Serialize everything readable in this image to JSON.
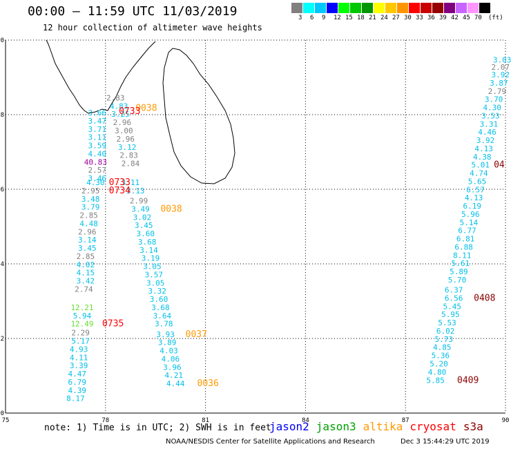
{
  "header": {
    "title": "00:00 – 11:59 UTC 11/03/2019",
    "subtitle": "12 hour collection of altimeter wave heights"
  },
  "scale": {
    "unit": "(ft)",
    "items": [
      {
        "label": "3",
        "color": "#808080"
      },
      {
        "label": "6",
        "color": "#00ffff"
      },
      {
        "label": "9",
        "color": "#00c8ff"
      },
      {
        "label": "12",
        "color": "#0000ff"
      },
      {
        "label": "15",
        "color": "#00ff00"
      },
      {
        "label": "18",
        "color": "#00c800"
      },
      {
        "label": "21",
        "color": "#009600"
      },
      {
        "label": "24",
        "color": "#ffff00"
      },
      {
        "label": "27",
        "color": "#ffc800"
      },
      {
        "label": "30",
        "color": "#ff9600"
      },
      {
        "label": "33",
        "color": "#ff0000"
      },
      {
        "label": "36",
        "color": "#c80000"
      },
      {
        "label": "39",
        "color": "#960000"
      },
      {
        "label": "42",
        "color": "#800080"
      },
      {
        "label": "45",
        "color": "#c864ff"
      },
      {
        "label": "70",
        "color": "#ff96ff"
      },
      {
        "label": "",
        "color": "#000000"
      }
    ]
  },
  "axes": {
    "x_ticks": [
      "75",
      "78",
      "81",
      "84",
      "87",
      "90"
    ],
    "y_ticks": [
      "0",
      "2",
      "4",
      "6",
      "8",
      "10"
    ],
    "xlim": [
      75,
      90
    ],
    "ylim": [
      0,
      10
    ]
  },
  "colors": {
    "gray": "#808080",
    "cyan": "#00bfe8",
    "red": "#ff0000",
    "orange": "#ff9900",
    "purple": "#a000a0",
    "green": "#66dd33",
    "darkred": "#8b0000"
  },
  "tracks": [
    {
      "name": "track-a",
      "labels": [
        {
          "lon": 77.75,
          "lat": 7.98,
          "v": "3.66",
          "c": "cyan"
        },
        {
          "lon": 77.75,
          "lat": 7.76,
          "v": "3.47",
          "c": "cyan"
        },
        {
          "lon": 77.75,
          "lat": 7.54,
          "v": "3.71",
          "c": "cyan"
        },
        {
          "lon": 77.75,
          "lat": 7.32,
          "v": "3.11",
          "c": "cyan"
        },
        {
          "lon": 77.75,
          "lat": 7.1,
          "v": "3.59",
          "c": "cyan"
        },
        {
          "lon": 77.75,
          "lat": 6.88,
          "v": "4.40",
          "c": "cyan"
        },
        {
          "lon": 77.7,
          "lat": 6.66,
          "v": "40.83",
          "c": "purple"
        },
        {
          "lon": 77.75,
          "lat": 6.44,
          "v": "2.57",
          "c": "gray"
        },
        {
          "lon": 77.75,
          "lat": 6.22,
          "v": "3.46",
          "c": "cyan"
        },
        {
          "lon": 77.7,
          "lat": 6.11,
          "v": "4.30",
          "c": "cyan"
        },
        {
          "lon": 77.55,
          "lat": 5.89,
          "v": "2.95",
          "c": "gray"
        },
        {
          "lon": 77.55,
          "lat": 5.67,
          "v": "3.48",
          "c": "cyan"
        },
        {
          "lon": 77.55,
          "lat": 5.45,
          "v": "3.79",
          "c": "cyan"
        },
        {
          "lon": 77.5,
          "lat": 5.23,
          "v": "2.85",
          "c": "gray"
        },
        {
          "lon": 77.5,
          "lat": 5.01,
          "v": "4.48",
          "c": "cyan"
        },
        {
          "lon": 77.45,
          "lat": 4.79,
          "v": "2.96",
          "c": "gray"
        },
        {
          "lon": 77.45,
          "lat": 4.57,
          "v": "3.14",
          "c": "cyan"
        },
        {
          "lon": 77.45,
          "lat": 4.35,
          "v": "3.45",
          "c": "cyan"
        },
        {
          "lon": 77.4,
          "lat": 4.13,
          "v": "2.85",
          "c": "gray"
        },
        {
          "lon": 77.4,
          "lat": 3.91,
          "v": "4.02",
          "c": "cyan"
        },
        {
          "lon": 77.4,
          "lat": 3.69,
          "v": "4.15",
          "c": "cyan"
        },
        {
          "lon": 77.4,
          "lat": 3.47,
          "v": "3.42",
          "c": "cyan"
        },
        {
          "lon": 77.35,
          "lat": 3.25,
          "v": "2.74",
          "c": "gray"
        },
        {
          "lon": 77.3,
          "lat": 2.76,
          "v": "12.21",
          "c": "green"
        },
        {
          "lon": 77.3,
          "lat": 2.54,
          "v": "5.94",
          "c": "cyan"
        },
        {
          "lon": 77.3,
          "lat": 2.32,
          "v": "12.49",
          "c": "green"
        },
        {
          "lon": 77.25,
          "lat": 2.08,
          "v": "2.29",
          "c": "gray"
        },
        {
          "lon": 77.25,
          "lat": 1.86,
          "v": "5.17",
          "c": "cyan"
        },
        {
          "lon": 77.2,
          "lat": 1.64,
          "v": "4.93",
          "c": "cyan"
        },
        {
          "lon": 77.2,
          "lat": 1.42,
          "v": "4.11",
          "c": "cyan"
        },
        {
          "lon": 77.2,
          "lat": 1.2,
          "v": "3.39",
          "c": "cyan"
        },
        {
          "lon": 77.15,
          "lat": 0.98,
          "v": "4.47",
          "c": "cyan"
        },
        {
          "lon": 77.15,
          "lat": 0.76,
          "v": "6.79",
          "c": "cyan"
        },
        {
          "lon": 77.15,
          "lat": 0.54,
          "v": "4.39",
          "c": "cyan"
        },
        {
          "lon": 77.1,
          "lat": 0.32,
          "v": "8.17",
          "c": "cyan"
        }
      ]
    },
    {
      "name": "track-b",
      "labels": [
        {
          "lon": 78.3,
          "lat": 8.38,
          "v": "2.83",
          "c": "gray"
        },
        {
          "lon": 78.4,
          "lat": 8.16,
          "v": "4.83",
          "c": "cyan"
        },
        {
          "lon": 78.45,
          "lat": 7.94,
          "v": "3.25",
          "c": "cyan"
        },
        {
          "lon": 78.5,
          "lat": 7.72,
          "v": "2.96",
          "c": "gray"
        },
        {
          "lon": 78.55,
          "lat": 7.5,
          "v": "3.00",
          "c": "gray"
        },
        {
          "lon": 78.6,
          "lat": 7.28,
          "v": "2.96",
          "c": "gray"
        },
        {
          "lon": 78.65,
          "lat": 7.06,
          "v": "3.12",
          "c": "cyan"
        },
        {
          "lon": 78.7,
          "lat": 6.84,
          "v": "2.83",
          "c": "gray"
        },
        {
          "lon": 78.75,
          "lat": 6.62,
          "v": "2.84",
          "c": "gray"
        },
        {
          "lon": 78.75,
          "lat": 6.11,
          "v": "3.11",
          "c": "cyan"
        },
        {
          "lon": 78.9,
          "lat": 5.89,
          "v": "3.13",
          "c": "cyan"
        },
        {
          "lon": 79.0,
          "lat": 5.62,
          "v": "2.99",
          "c": "gray"
        },
        {
          "lon": 79.05,
          "lat": 5.4,
          "v": "3.49",
          "c": "cyan"
        },
        {
          "lon": 79.1,
          "lat": 5.18,
          "v": "3.02",
          "c": "cyan"
        },
        {
          "lon": 79.15,
          "lat": 4.96,
          "v": "3.45",
          "c": "cyan"
        },
        {
          "lon": 79.2,
          "lat": 4.74,
          "v": "3.60",
          "c": "cyan"
        },
        {
          "lon": 79.25,
          "lat": 4.52,
          "v": "3.68",
          "c": "cyan"
        },
        {
          "lon": 79.3,
          "lat": 4.3,
          "v": "3.14",
          "c": "cyan"
        },
        {
          "lon": 79.35,
          "lat": 4.08,
          "v": "3.19",
          "c": "cyan"
        },
        {
          "lon": 79.4,
          "lat": 3.86,
          "v": "3.05",
          "c": "cyan"
        },
        {
          "lon": 79.45,
          "lat": 3.64,
          "v": "3.57",
          "c": "cyan"
        },
        {
          "lon": 79.5,
          "lat": 3.42,
          "v": "3.05",
          "c": "cyan"
        },
        {
          "lon": 79.55,
          "lat": 3.2,
          "v": "3.32",
          "c": "cyan"
        },
        {
          "lon": 79.6,
          "lat": 2.98,
          "v": "3.60",
          "c": "cyan"
        },
        {
          "lon": 79.65,
          "lat": 2.76,
          "v": "3.68",
          "c": "cyan"
        },
        {
          "lon": 79.7,
          "lat": 2.54,
          "v": "3.64",
          "c": "cyan"
        },
        {
          "lon": 79.75,
          "lat": 2.32,
          "v": "3.78",
          "c": "cyan"
        },
        {
          "lon": 79.8,
          "lat": 2.04,
          "v": "3.93",
          "c": "cyan"
        },
        {
          "lon": 79.85,
          "lat": 1.82,
          "v": "3.89",
          "c": "cyan"
        },
        {
          "lon": 79.9,
          "lat": 1.6,
          "v": "4.03",
          "c": "cyan"
        },
        {
          "lon": 79.95,
          "lat": 1.38,
          "v": "4.06",
          "c": "cyan"
        },
        {
          "lon": 80.0,
          "lat": 1.16,
          "v": "3.96",
          "c": "cyan"
        },
        {
          "lon": 80.05,
          "lat": 0.94,
          "v": "4.21",
          "c": "cyan"
        },
        {
          "lon": 80.1,
          "lat": 0.72,
          "v": "4.44",
          "c": "cyan"
        }
      ]
    },
    {
      "name": "track-c",
      "labels": [
        {
          "lon": 89.9,
          "lat": 9.4,
          "v": "3.03",
          "c": "cyan"
        },
        {
          "lon": 89.85,
          "lat": 9.2,
          "v": "2.07",
          "c": "gray"
        },
        {
          "lon": 89.85,
          "lat": 9.0,
          "v": "3.92",
          "c": "cyan"
        },
        {
          "lon": 89.8,
          "lat": 8.78,
          "v": "3.87",
          "c": "cyan"
        },
        {
          "lon": 89.75,
          "lat": 8.56,
          "v": "2.79",
          "c": "gray"
        },
        {
          "lon": 89.65,
          "lat": 8.34,
          "v": "3.70",
          "c": "cyan"
        },
        {
          "lon": 89.6,
          "lat": 8.12,
          "v": "4.30",
          "c": "cyan"
        },
        {
          "lon": 89.55,
          "lat": 7.9,
          "v": "3.53",
          "c": "cyan"
        },
        {
          "lon": 89.5,
          "lat": 7.68,
          "v": "3.31",
          "c": "cyan"
        },
        {
          "lon": 89.45,
          "lat": 7.46,
          "v": "4.46",
          "c": "cyan"
        },
        {
          "lon": 89.4,
          "lat": 7.24,
          "v": "3.92",
          "c": "cyan"
        },
        {
          "lon": 89.35,
          "lat": 7.02,
          "v": "4.13",
          "c": "cyan"
        },
        {
          "lon": 89.3,
          "lat": 6.8,
          "v": "4.38",
          "c": "cyan"
        },
        {
          "lon": 89.25,
          "lat": 6.58,
          "v": "5.01",
          "c": "cyan"
        },
        {
          "lon": 89.2,
          "lat": 6.36,
          "v": "4.74",
          "c": "cyan"
        },
        {
          "lon": 89.15,
          "lat": 6.14,
          "v": "5.65",
          "c": "cyan"
        },
        {
          "lon": 89.1,
          "lat": 5.92,
          "v": "6.57",
          "c": "cyan"
        },
        {
          "lon": 89.05,
          "lat": 5.7,
          "v": "4.13",
          "c": "cyan"
        },
        {
          "lon": 89.0,
          "lat": 5.48,
          "v": "6.19",
          "c": "cyan"
        },
        {
          "lon": 88.95,
          "lat": 5.26,
          "v": "5.96",
          "c": "cyan"
        },
        {
          "lon": 88.9,
          "lat": 5.04,
          "v": "5.14",
          "c": "cyan"
        },
        {
          "lon": 88.85,
          "lat": 4.82,
          "v": "6.77",
          "c": "cyan"
        },
        {
          "lon": 88.8,
          "lat": 4.6,
          "v": "6.81",
          "c": "cyan"
        },
        {
          "lon": 88.75,
          "lat": 4.38,
          "v": "6.88",
          "c": "cyan"
        },
        {
          "lon": 88.7,
          "lat": 4.16,
          "v": "8.11",
          "c": "cyan"
        },
        {
          "lon": 88.65,
          "lat": 3.94,
          "v": "5.61",
          "c": "cyan"
        },
        {
          "lon": 88.6,
          "lat": 3.72,
          "v": "5.89",
          "c": "cyan"
        },
        {
          "lon": 88.55,
          "lat": 3.5,
          "v": "5.70",
          "c": "cyan"
        },
        {
          "lon": 88.45,
          "lat": 3.23,
          "v": "6.37",
          "c": "cyan"
        },
        {
          "lon": 88.45,
          "lat": 3.01,
          "v": "6.56",
          "c": "cyan"
        },
        {
          "lon": 88.4,
          "lat": 2.79,
          "v": "5.45",
          "c": "cyan"
        },
        {
          "lon": 88.35,
          "lat": 2.57,
          "v": "5.95",
          "c": "cyan"
        },
        {
          "lon": 88.25,
          "lat": 2.35,
          "v": "5.53",
          "c": "cyan"
        },
        {
          "lon": 88.2,
          "lat": 2.13,
          "v": "6.02",
          "c": "cyan"
        },
        {
          "lon": 88.15,
          "lat": 1.91,
          "v": "5.73",
          "c": "cyan"
        },
        {
          "lon": 88.1,
          "lat": 1.69,
          "v": "4.85",
          "c": "cyan"
        },
        {
          "lon": 88.05,
          "lat": 1.47,
          "v": "5.36",
          "c": "cyan"
        },
        {
          "lon": 88.0,
          "lat": 1.25,
          "v": "5.20",
          "c": "cyan"
        },
        {
          "lon": 87.95,
          "lat": 1.03,
          "v": "4.80",
          "c": "cyan"
        },
        {
          "lon": 87.9,
          "lat": 0.81,
          "v": "5.85",
          "c": "cyan"
        }
      ]
    }
  ],
  "times": [
    {
      "lon": 78.9,
      "lat": 8.1,
      "v": "0038",
      "c": "orange"
    },
    {
      "lon": 78.4,
      "lat": 8.02,
      "v": "0733",
      "c": "red"
    },
    {
      "lon": 78.1,
      "lat": 6.11,
      "v": "0733",
      "c": "red"
    },
    {
      "lon": 78.1,
      "lat": 5.89,
      "v": "0734",
      "c": "red"
    },
    {
      "lon": 79.65,
      "lat": 5.4,
      "v": "0038",
      "c": "orange"
    },
    {
      "lon": 77.9,
      "lat": 2.32,
      "v": "0735",
      "c": "red"
    },
    {
      "lon": 80.4,
      "lat": 2.04,
      "v": "0037",
      "c": "orange"
    },
    {
      "lon": 80.75,
      "lat": 0.72,
      "v": "0036",
      "c": "orange"
    },
    {
      "lon": 89.65,
      "lat": 6.58,
      "v": "04",
      "c": "darkred"
    },
    {
      "lon": 89.05,
      "lat": 3.01,
      "v": "0408",
      "c": "darkred"
    },
    {
      "lon": 88.55,
      "lat": 0.81,
      "v": "0409",
      "c": "darkred"
    }
  ],
  "footer": {
    "note": "note: 1) Time is in UTC; 2) SWH is in feet",
    "legend": [
      {
        "label": "jason2",
        "color": "#0000ee"
      },
      {
        "label": "jason3",
        "color": "#00a000"
      },
      {
        "label": "altika",
        "color": "#ff9900"
      },
      {
        "label": "cryosat",
        "color": "#ff0000"
      },
      {
        "label": "s3a",
        "color": "#8b0000"
      }
    ],
    "credit": "NOAA/NESDIS Center for Satellite Applications and Research",
    "stamp": "Dec  3 15:44:29 UTC 2019"
  }
}
